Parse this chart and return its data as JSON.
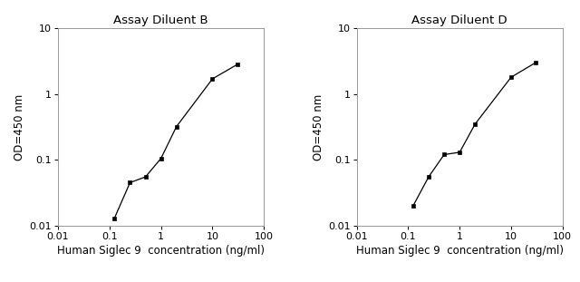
{
  "chart_B": {
    "title": "Assay Diluent B",
    "x": [
      0.125,
      0.25,
      0.5,
      1.0,
      2.0,
      10.0,
      30.0
    ],
    "y": [
      0.013,
      0.045,
      0.055,
      0.105,
      0.32,
      1.7,
      2.8
    ]
  },
  "chart_D": {
    "title": "Assay Diluent D",
    "x": [
      0.125,
      0.25,
      0.5,
      1.0,
      2.0,
      10.0,
      30.0
    ],
    "y": [
      0.02,
      0.055,
      0.12,
      0.13,
      0.35,
      1.8,
      3.0
    ]
  },
  "xlabel": "Human Siglec 9  concentration (ng/ml)",
  "ylabel": "OD=450 nm",
  "xlim": [
    0.01,
    100
  ],
  "ylim": [
    0.01,
    10
  ],
  "xticks": [
    0.01,
    0.1,
    1,
    10,
    100
  ],
  "yticks": [
    0.01,
    0.1,
    1,
    10
  ],
  "xtick_labels": [
    "0.01",
    "0.1",
    "1",
    "10",
    "100"
  ],
  "ytick_labels": [
    "0.01",
    "0.1",
    "1",
    "10"
  ],
  "line_color": "#000000",
  "marker": "s",
  "markersize": 3.5,
  "linewidth": 0.9,
  "bg_color": "#ffffff",
  "title_fontsize": 9.5,
  "label_fontsize": 8.5,
  "tick_fontsize": 8,
  "spine_color": "#999999",
  "spine_linewidth": 0.7
}
